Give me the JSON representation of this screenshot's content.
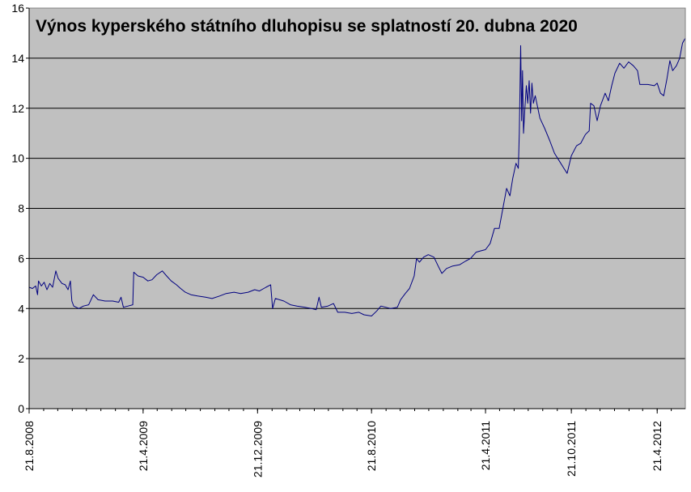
{
  "chart_data": {
    "type": "line",
    "title": "Výnos kyperského státního dluhopisu se splatností 20. dubna 2020",
    "xlabel": "",
    "ylabel": "",
    "ylim": [
      0,
      16
    ],
    "yticks": [
      0,
      2,
      4,
      6,
      8,
      10,
      12,
      14,
      16
    ],
    "xlim": [
      "2008-08-21",
      "2012-06-20"
    ],
    "xticks": [
      {
        "date": "2008-08-21",
        "label": "21.8.2008"
      },
      {
        "date": "2009-04-21",
        "label": "21.4.2009"
      },
      {
        "date": "2009-12-21",
        "label": "21.12.2009"
      },
      {
        "date": "2010-08-21",
        "label": "21.8.2010"
      },
      {
        "date": "2011-04-21",
        "label": "21.4.2011"
      },
      {
        "date": "2011-10-21",
        "label": "21.10.2011"
      },
      {
        "date": "2012-04-21",
        "label": "21.4.2012"
      }
    ],
    "grid": true,
    "plot_background": "#c0c0c0",
    "line_color": "#000080",
    "series": [
      {
        "points": [
          [
            "2008-08-21",
            4.85
          ],
          [
            "2008-08-28",
            4.8
          ],
          [
            "2008-09-04",
            4.9
          ],
          [
            "2008-09-08",
            4.55
          ],
          [
            "2008-09-10",
            5.1
          ],
          [
            "2008-09-16",
            4.9
          ],
          [
            "2008-09-22",
            5.05
          ],
          [
            "2008-09-28",
            4.75
          ],
          [
            "2008-10-04",
            5.0
          ],
          [
            "2008-10-10",
            4.85
          ],
          [
            "2008-10-17",
            5.5
          ],
          [
            "2008-10-22",
            5.2
          ],
          [
            "2008-10-30",
            5.0
          ],
          [
            "2008-11-06",
            4.95
          ],
          [
            "2008-11-12",
            4.75
          ],
          [
            "2008-11-17",
            5.1
          ],
          [
            "2008-11-20",
            4.3
          ],
          [
            "2008-11-24",
            4.1
          ],
          [
            "2008-12-05",
            4.0
          ],
          [
            "2008-12-15",
            4.1
          ],
          [
            "2008-12-26",
            4.15
          ],
          [
            "2009-01-05",
            4.55
          ],
          [
            "2009-01-15",
            4.35
          ],
          [
            "2009-01-30",
            4.3
          ],
          [
            "2009-02-15",
            4.3
          ],
          [
            "2009-02-28",
            4.25
          ],
          [
            "2009-03-05",
            4.45
          ],
          [
            "2009-03-10",
            4.05
          ],
          [
            "2009-03-20",
            4.1
          ],
          [
            "2009-03-30",
            4.15
          ],
          [
            "2009-04-01",
            5.45
          ],
          [
            "2009-04-10",
            5.3
          ],
          [
            "2009-04-21",
            5.25
          ],
          [
            "2009-05-01",
            5.1
          ],
          [
            "2009-05-10",
            5.15
          ],
          [
            "2009-05-20",
            5.35
          ],
          [
            "2009-06-01",
            5.5
          ],
          [
            "2009-06-10",
            5.3
          ],
          [
            "2009-06-20",
            5.1
          ],
          [
            "2009-07-01",
            4.95
          ],
          [
            "2009-07-10",
            4.8
          ],
          [
            "2009-07-20",
            4.65
          ],
          [
            "2009-08-01",
            4.55
          ],
          [
            "2009-08-15",
            4.5
          ],
          [
            "2009-09-01",
            4.45
          ],
          [
            "2009-09-15",
            4.4
          ],
          [
            "2009-10-01",
            4.5
          ],
          [
            "2009-10-15",
            4.6
          ],
          [
            "2009-11-01",
            4.65
          ],
          [
            "2009-11-15",
            4.6
          ],
          [
            "2009-12-01",
            4.65
          ],
          [
            "2009-12-15",
            4.75
          ],
          [
            "2009-12-25",
            4.7
          ],
          [
            "2010-01-08",
            4.85
          ],
          [
            "2010-01-18",
            4.95
          ],
          [
            "2010-01-22",
            4.0
          ],
          [
            "2010-01-28",
            4.4
          ],
          [
            "2010-02-15",
            4.3
          ],
          [
            "2010-03-01",
            4.15
          ],
          [
            "2010-03-15",
            4.1
          ],
          [
            "2010-04-01",
            4.05
          ],
          [
            "2010-04-15",
            4.0
          ],
          [
            "2010-04-25",
            3.95
          ],
          [
            "2010-05-01",
            4.45
          ],
          [
            "2010-05-06",
            4.05
          ],
          [
            "2010-05-20",
            4.1
          ],
          [
            "2010-06-01",
            4.2
          ],
          [
            "2010-06-10",
            3.85
          ],
          [
            "2010-06-25",
            3.85
          ],
          [
            "2010-07-10",
            3.8
          ],
          [
            "2010-07-25",
            3.85
          ],
          [
            "2010-08-05",
            3.75
          ],
          [
            "2010-08-21",
            3.7
          ],
          [
            "2010-09-01",
            3.9
          ],
          [
            "2010-09-10",
            4.1
          ],
          [
            "2010-09-20",
            4.05
          ],
          [
            "2010-10-01",
            4.0
          ],
          [
            "2010-10-15",
            4.05
          ],
          [
            "2010-10-22",
            4.35
          ],
          [
            "2010-11-01",
            4.6
          ],
          [
            "2010-11-10",
            4.8
          ],
          [
            "2010-11-20",
            5.3
          ],
          [
            "2010-11-25",
            6.0
          ],
          [
            "2010-12-01",
            5.85
          ],
          [
            "2010-12-10",
            6.05
          ],
          [
            "2010-12-20",
            6.15
          ],
          [
            "2011-01-01",
            6.05
          ],
          [
            "2011-01-10",
            5.7
          ],
          [
            "2011-01-18",
            5.4
          ],
          [
            "2011-01-28",
            5.6
          ],
          [
            "2011-02-10",
            5.7
          ],
          [
            "2011-02-25",
            5.75
          ],
          [
            "2011-03-10",
            5.9
          ],
          [
            "2011-03-20",
            6.0
          ],
          [
            "2011-04-01",
            6.25
          ],
          [
            "2011-04-10",
            6.3
          ],
          [
            "2011-04-21",
            6.35
          ],
          [
            "2011-05-01",
            6.6
          ],
          [
            "2011-05-10",
            7.2
          ],
          [
            "2011-05-20",
            7.2
          ],
          [
            "2011-05-28",
            8.0
          ],
          [
            "2011-06-05",
            8.8
          ],
          [
            "2011-06-12",
            8.5
          ],
          [
            "2011-06-18",
            9.2
          ],
          [
            "2011-06-25",
            9.8
          ],
          [
            "2011-06-30",
            9.6
          ],
          [
            "2011-07-02",
            11.0
          ],
          [
            "2011-07-05",
            14.5
          ],
          [
            "2011-07-07",
            11.5
          ],
          [
            "2011-07-09",
            13.5
          ],
          [
            "2011-07-11",
            11.0
          ],
          [
            "2011-07-14",
            12.0
          ],
          [
            "2011-07-17",
            12.9
          ],
          [
            "2011-07-20",
            12.2
          ],
          [
            "2011-07-23",
            13.1
          ],
          [
            "2011-07-26",
            11.8
          ],
          [
            "2011-07-29",
            13.0
          ],
          [
            "2011-08-01",
            12.2
          ],
          [
            "2011-08-05",
            12.5
          ],
          [
            "2011-08-15",
            11.6
          ],
          [
            "2011-08-25",
            11.2
          ],
          [
            "2011-09-05",
            10.7
          ],
          [
            "2011-09-15",
            10.2
          ],
          [
            "2011-09-25",
            9.9
          ],
          [
            "2011-10-05",
            9.6
          ],
          [
            "2011-10-12",
            9.4
          ],
          [
            "2011-10-21",
            10.1
          ],
          [
            "2011-11-01",
            10.5
          ],
          [
            "2011-11-10",
            10.6
          ],
          [
            "2011-11-20",
            10.95
          ],
          [
            "2011-11-28",
            11.1
          ],
          [
            "2011-12-01",
            12.2
          ],
          [
            "2011-12-08",
            12.1
          ],
          [
            "2011-12-15",
            11.5
          ],
          [
            "2011-12-22",
            12.1
          ],
          [
            "2012-01-01",
            12.6
          ],
          [
            "2012-01-08",
            12.3
          ],
          [
            "2012-01-15",
            12.9
          ],
          [
            "2012-01-22",
            13.4
          ],
          [
            "2012-02-01",
            13.8
          ],
          [
            "2012-02-10",
            13.6
          ],
          [
            "2012-02-20",
            13.85
          ],
          [
            "2012-03-01",
            13.7
          ],
          [
            "2012-03-10",
            13.5
          ],
          [
            "2012-03-15",
            12.95
          ],
          [
            "2012-04-01",
            12.95
          ],
          [
            "2012-04-15",
            12.9
          ],
          [
            "2012-04-21",
            13.0
          ],
          [
            "2012-04-28",
            12.6
          ],
          [
            "2012-05-05",
            12.5
          ],
          [
            "2012-05-12",
            13.2
          ],
          [
            "2012-05-18",
            13.9
          ],
          [
            "2012-05-24",
            13.5
          ],
          [
            "2012-06-01",
            13.7
          ],
          [
            "2012-06-08",
            14.0
          ],
          [
            "2012-06-14",
            14.6
          ],
          [
            "2012-06-20",
            14.8
          ]
        ]
      }
    ]
  }
}
